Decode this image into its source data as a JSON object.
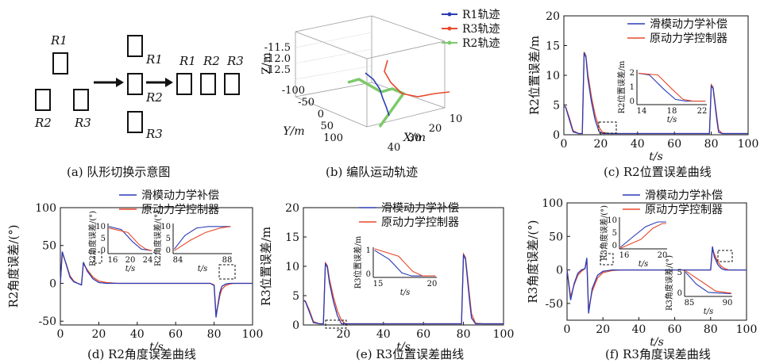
{
  "formation": {
    "r1": "R1",
    "r2": "R2",
    "r3": "R3",
    "caption": "(a) 队形切换示意图"
  },
  "panels": {
    "b": {
      "caption": "(b) 编队运动轨迹"
    },
    "c": {
      "caption": "(c) R2位置误差曲线"
    },
    "d": {
      "caption": "(d) R2角度误差曲线"
    },
    "e": {
      "caption": "(e) R3位置误差曲线"
    },
    "f": {
      "caption": "(f) R3角度误差曲线"
    }
  },
  "colors": {
    "smc": "#2b3cb5",
    "orig": "#e84a2b",
    "r2traj": "#7cc96a",
    "axis": "#111111"
  },
  "chart_data": [
    {
      "id": "b",
      "type": "line",
      "zlabel": "Z/m",
      "ylabel": "Y/m",
      "xlabel": "X/m",
      "z_ticks": [
        "-11.5",
        "-12.0",
        "-12.5"
      ],
      "y_ticks": [
        "-100",
        "-50",
        "0",
        "50",
        "100"
      ],
      "x_ticks": [
        "10",
        "20",
        "30",
        "40"
      ],
      "series": [
        {
          "name": "R1轨迹"
        },
        {
          "name": "R3轨迹"
        },
        {
          "name": "R2轨迹"
        }
      ]
    },
    {
      "id": "c",
      "type": "line",
      "xlabel": "t/s",
      "ylabel": "R2位置误差/m",
      "xlim": [
        0,
        100
      ],
      "ylim": [
        0,
        20
      ],
      "x_ticks": [
        "0",
        "20",
        "40",
        "60",
        "80",
        "100"
      ],
      "y_ticks": [
        "0",
        "5",
        "10",
        "15",
        "20"
      ],
      "x": [
        0,
        1,
        3,
        5,
        8,
        10,
        11,
        12,
        13,
        15,
        17,
        19,
        21,
        25,
        30,
        40,
        60,
        78,
        79,
        80,
        81,
        82,
        83,
        84,
        86,
        90,
        100
      ],
      "series": [
        {
          "name": "滑模动力学补偿",
          "values": [
            4.8,
            4.6,
            2.5,
            0.5,
            0.2,
            0.2,
            13.8,
            13.0,
            9.5,
            5.5,
            2.5,
            0.6,
            0.2,
            0.2,
            0.2,
            0.2,
            0.2,
            0.2,
            0.2,
            8.2,
            7.8,
            5.2,
            2.5,
            0.4,
            0.2,
            0.2,
            0.2
          ]
        },
        {
          "name": "原动力学控制器",
          "values": [
            4.8,
            4.7,
            2.8,
            0.7,
            0.2,
            0.2,
            13.9,
            13.3,
            10.2,
            6.3,
            3.3,
            1.3,
            0.4,
            0.2,
            0.2,
            0.2,
            0.2,
            0.2,
            0.2,
            8.4,
            8.0,
            5.6,
            3.0,
            0.8,
            0.2,
            0.2,
            0.2
          ]
        }
      ],
      "inset": {
        "ylabel": "R2位置误差/m",
        "xlabel": "t/s",
        "x_ticks": [
          "14",
          "18",
          "22"
        ],
        "y_ticks": [
          "0",
          "1",
          "2"
        ]
      }
    },
    {
      "id": "d",
      "type": "line",
      "xlabel": "t/s",
      "ylabel": "R2角度误差/(°)",
      "xlim": [
        0,
        100
      ],
      "ylim": [
        -55,
        100
      ],
      "x_ticks": [
        "0",
        "20",
        "40",
        "60",
        "80",
        "100"
      ],
      "y_ticks": [
        "-50",
        "0",
        "50",
        "100"
      ],
      "x": [
        0,
        1,
        3,
        5,
        7,
        9,
        11,
        12,
        14,
        17,
        20,
        24,
        30,
        50,
        78,
        80,
        81,
        82,
        83,
        84,
        86,
        88,
        90,
        100
      ],
      "series": [
        {
          "name": "滑模动力学补偿",
          "values": [
            0,
            42,
            25,
            8,
            2,
            0,
            -2,
            28,
            16,
            6,
            1,
            0,
            0,
            0,
            0,
            -3,
            -45,
            -28,
            -12,
            -4,
            -1,
            0,
            0,
            0
          ]
        },
        {
          "name": "原动力学控制器",
          "values": [
            0,
            40,
            26,
            10,
            3,
            0,
            -2,
            26,
            18,
            8,
            3,
            1,
            0,
            0,
            0,
            -2,
            -40,
            -30,
            -16,
            -8,
            -3,
            -1,
            0,
            0
          ]
        }
      ],
      "insets": [
        {
          "ylabel": "R2角度误差/(°)",
          "xlabel": "t/s",
          "x_ticks": [
            "16",
            "20",
            "24"
          ],
          "y_ticks": [
            "0",
            "5",
            "10"
          ]
        },
        {
          "ylabel": "R2角度误差/(°)",
          "xlabel": "t/s",
          "x_ticks": [
            "84",
            "88"
          ],
          "y_ticks": [
            "0",
            "5",
            "10"
          ]
        }
      ]
    },
    {
      "id": "e",
      "type": "line",
      "xlabel": "t/s",
      "ylabel": "R3位置误差/m",
      "xlim": [
        0,
        100
      ],
      "ylim": [
        0,
        20
      ],
      "x_ticks": [
        "20",
        "40",
        "60",
        "80",
        "100"
      ],
      "y_ticks": [
        "0",
        "5",
        "10",
        "15",
        "20"
      ],
      "x": [
        0,
        1,
        3,
        5,
        8,
        10,
        11,
        12,
        13,
        15,
        17,
        19,
        21,
        25,
        40,
        60,
        78,
        79,
        80,
        81,
        82,
        83,
        84,
        86,
        90,
        100
      ],
      "series": [
        {
          "name": "滑模动力学补偿",
          "values": [
            4.2,
            4.0,
            2.2,
            0.4,
            0.2,
            0.2,
            10.5,
            9.8,
            7.2,
            4.0,
            1.6,
            0.2,
            0.2,
            0.2,
            0.2,
            0.2,
            0.2,
            0.2,
            12.0,
            11.2,
            7.8,
            4.2,
            1.2,
            0.2,
            0.2,
            0.2
          ]
        },
        {
          "name": "原动力学控制器",
          "values": [
            4.2,
            4.1,
            2.5,
            0.6,
            0.2,
            0.2,
            10.6,
            10.1,
            7.8,
            4.8,
            2.4,
            0.8,
            0.2,
            0.2,
            0.2,
            0.2,
            0.2,
            0.2,
            12.1,
            11.5,
            8.4,
            5.0,
            1.9,
            0.3,
            0.2,
            0.2
          ]
        }
      ],
      "inset": {
        "ylabel": "R3位置误差/m",
        "xlabel": "t/s",
        "x_ticks": [
          "15",
          "20"
        ],
        "y_ticks": [
          "0",
          "1"
        ]
      }
    },
    {
      "id": "f",
      "type": "line",
      "xlabel": "t/s",
      "ylabel": "R3角度误差/(°)",
      "xlim": [
        0,
        100
      ],
      "ylim": [
        -75,
        100
      ],
      "x_ticks": [
        "0",
        "20",
        "40",
        "60",
        "80",
        "100"
      ],
      "y_ticks": [
        "-50",
        "0",
        "50",
        "100"
      ],
      "x": [
        0,
        2,
        4,
        6,
        8,
        10,
        11,
        12,
        14,
        17,
        20,
        25,
        30,
        50,
        78,
        80,
        81,
        82,
        84,
        86,
        88,
        90,
        100
      ],
      "series": [
        {
          "name": "滑模动力学补偿",
          "values": [
            0,
            -45,
            -20,
            -5,
            0,
            2,
            18,
            -65,
            -28,
            -8,
            -2,
            0,
            0,
            0,
            0,
            0,
            35,
            20,
            8,
            2,
            0,
            0,
            0
          ]
        },
        {
          "name": "原动力学控制器",
          "values": [
            0,
            -40,
            -22,
            -8,
            -2,
            2,
            15,
            -60,
            -32,
            -12,
            -4,
            -1,
            0,
            0,
            0,
            0,
            32,
            24,
            12,
            5,
            2,
            0,
            0
          ]
        }
      ],
      "insets": [
        {
          "ylabel": "R3角度误差/(°)",
          "xlabel": "t/s",
          "x_ticks": [
            "16",
            "20"
          ],
          "y_ticks": [
            "0",
            "5",
            "10"
          ]
        },
        {
          "ylabel": "R3角度误差/(°)",
          "xlabel": "t/s",
          "x_ticks": [
            "85",
            "90"
          ],
          "y_ticks": [
            "0",
            "5"
          ]
        }
      ]
    }
  ]
}
